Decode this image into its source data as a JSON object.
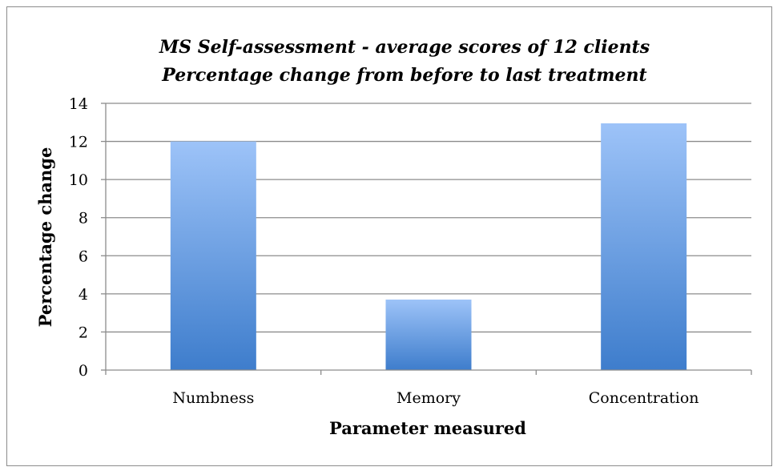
{
  "chart_data": {
    "type": "bar",
    "title": "MS  Self-assessment - average scores of 12 clients",
    "subtitle": "Percentage  change from before to last treatment",
    "xlabel": "Parameter measured",
    "ylabel": "Percentage change",
    "categories": [
      "Numbness",
      "Memory",
      "Concentration"
    ],
    "values": [
      12.0,
      3.7,
      12.95
    ],
    "ylim": [
      0,
      14
    ],
    "yticks": [
      "0",
      "2",
      "4",
      "6",
      "8",
      "10",
      "12",
      "14"
    ],
    "grid": true,
    "legend": "none",
    "colors": {
      "bar_top": "#9DC3F8",
      "bar_bottom": "#3E7DCC",
      "grid": "#8c8c8c",
      "axis": "#8c8c8c",
      "frame": "#8c8c8c"
    }
  }
}
